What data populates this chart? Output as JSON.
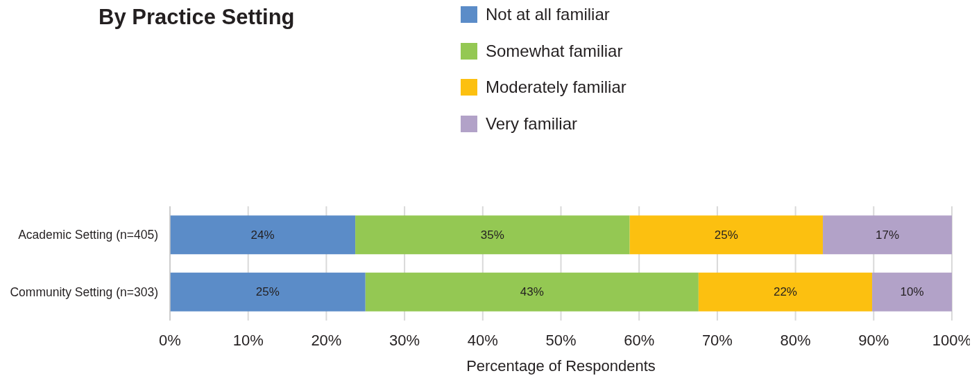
{
  "chart_data": {
    "type": "bar",
    "orientation": "horizontal",
    "stacked": true,
    "title": "By Practice Setting",
    "xlabel": "Percentage of Respondents",
    "categories": [
      "Academic Setting (n=405)",
      "Community Setting (n=303)"
    ],
    "series": [
      {
        "name": "Not at all familiar",
        "color": "#5b8cc8",
        "values": [
          23.7,
          25.0
        ],
        "value_labels": [
          "24%",
          "25%"
        ]
      },
      {
        "name": "Somewhat familiar",
        "color": "#94c853",
        "values": [
          35.1,
          42.6
        ],
        "value_labels": [
          "35%",
          "43%"
        ]
      },
      {
        "name": "Moderately familiar",
        "color": "#fcc010",
        "values": [
          24.7,
          22.2
        ],
        "value_labels": [
          "25%",
          "22%"
        ]
      },
      {
        "name": "Very familiar",
        "color": "#b2a2c8",
        "values": [
          16.5,
          10.2
        ],
        "value_labels": [
          "17%",
          "10%"
        ]
      }
    ],
    "xlim": [
      0,
      100
    ],
    "xticks": [
      {
        "value": 0,
        "label": "0%"
      },
      {
        "value": 10,
        "label": "10%"
      },
      {
        "value": 20,
        "label": "20%"
      },
      {
        "value": 30,
        "label": "30%"
      },
      {
        "value": 40,
        "label": "40%"
      },
      {
        "value": 50,
        "label": "50%"
      },
      {
        "value": 60,
        "label": "60%"
      },
      {
        "value": 70,
        "label": "70%"
      },
      {
        "value": 80,
        "label": "80%"
      },
      {
        "value": 90,
        "label": "90%"
      },
      {
        "value": 100,
        "label": "100%"
      }
    ],
    "grid": "x",
    "legend": "top"
  }
}
